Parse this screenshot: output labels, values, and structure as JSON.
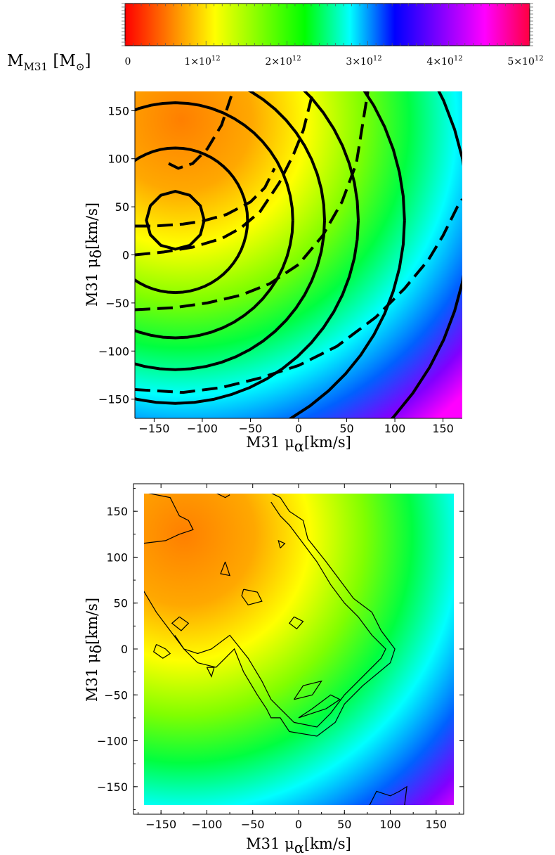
{
  "colorbar": {
    "label_main": "M",
    "label_sub": "M31",
    "label_unit_open": " [M",
    "label_unit_sub": "⊙",
    "label_unit_close": "]",
    "range": [
      0,
      5000000000000.0
    ],
    "ticks": [
      {
        "value": 0,
        "mant": "0",
        "exp": ""
      },
      {
        "value": 1000000000000.0,
        "mant": "1×10",
        "exp": "12"
      },
      {
        "value": 2000000000000.0,
        "mant": "2×10",
        "exp": "12"
      },
      {
        "value": 3000000000000.0,
        "mant": "3×10",
        "exp": "12"
      },
      {
        "value": 4000000000000.0,
        "mant": "4×10",
        "exp": "12"
      },
      {
        "value": 5000000000000.0,
        "mant": "5×10",
        "exp": "12"
      }
    ],
    "colors": [
      "#ff0000",
      "#ff8000",
      "#ffff00",
      "#80ff00",
      "#00ff00",
      "#00ffff",
      "#0000ff",
      "#8000ff",
      "#ff00ff",
      "#ff0040"
    ]
  },
  "chart_data": [
    {
      "type": "heatmap",
      "xlabel_main": "M31 μ",
      "xlabel_sub": "α",
      "xlabel_unit": "[km/s]",
      "ylabel_main": "M31 μ",
      "ylabel_sub": "δ",
      "ylabel_unit": "[km/s]",
      "xlim": [
        -170,
        170
      ],
      "ylim": [
        -170,
        170
      ],
      "xticks": [
        -150,
        -100,
        -50,
        0,
        50,
        100,
        150
      ],
      "yticks": [
        -150,
        -100,
        -50,
        0,
        50,
        100,
        150
      ],
      "field": {
        "description_center": [
          -130,
          115
        ],
        "min_value": 900000000000.0,
        "max_value": 5000000000000.0
      },
      "solid_contour_radii": [
        30,
        75,
        122,
        155,
        190,
        238,
        305
      ],
      "solid_contour_center": [
        -128,
        36
      ],
      "dashed_contours": [
        {
          "points": [
            [
              -135,
              95
            ],
            [
              -125,
              90
            ],
            [
              -110,
              95
            ],
            [
              -95,
              110
            ],
            [
              -80,
              135
            ],
            [
              -70,
              165
            ]
          ]
        },
        {
          "points": [
            [
              -170,
              0
            ],
            [
              -140,
              3
            ],
            [
              -110,
              8
            ],
            [
              -80,
              17
            ],
            [
              -60,
              28
            ],
            [
              -40,
              45
            ],
            [
              -20,
              75
            ],
            [
              -5,
              105
            ],
            [
              5,
              130
            ],
            [
              15,
              170
            ]
          ]
        },
        {
          "points": [
            [
              -170,
              -57
            ],
            [
              -130,
              -55
            ],
            [
              -95,
              -50
            ],
            [
              -60,
              -42
            ],
            [
              -30,
              -30
            ],
            [
              0,
              -10
            ],
            [
              25,
              20
            ],
            [
              45,
              55
            ],
            [
              60,
              95
            ],
            [
              72,
              170
            ]
          ]
        },
        {
          "points": [
            [
              -170,
              -140
            ],
            [
              -120,
              -143
            ],
            [
              -80,
              -138
            ],
            [
              -40,
              -128
            ],
            [
              0,
              -115
            ],
            [
              40,
              -95
            ],
            [
              80,
              -65
            ],
            [
              110,
              -35
            ],
            [
              135,
              -5
            ],
            [
              150,
              20
            ],
            [
              165,
              50
            ],
            [
              170,
              58
            ]
          ]
        },
        {
          "points": [
            [
              -170,
              30
            ],
            [
              -150,
              30
            ],
            [
              -120,
              32
            ],
            [
              -100,
              35
            ],
            [
              -75,
              42
            ],
            [
              -50,
              55
            ],
            [
              -35,
              70
            ],
            [
              -25,
              90
            ]
          ]
        }
      ]
    },
    {
      "type": "heatmap",
      "xlabel_main": "M31 μ",
      "xlabel_sub": "α",
      "xlabel_unit": "[km/s]",
      "ylabel_main": "M31 μ",
      "ylabel_sub": "δ",
      "ylabel_unit": "[km/s]",
      "xlim": [
        -180,
        180
      ],
      "ylim": [
        -180,
        180
      ],
      "xticks": [
        -150,
        -100,
        -50,
        0,
        50,
        100,
        150
      ],
      "yticks": [
        -150,
        -100,
        -50,
        0,
        50,
        100,
        150
      ],
      "field_extent": [
        -170,
        170
      ],
      "contours_outer": [
        [
          -170,
          65
        ],
        [
          -155,
          40
        ],
        [
          -140,
          20
        ],
        [
          -125,
          0
        ],
        [
          -110,
          -15
        ],
        [
          -90,
          -20
        ],
        [
          -80,
          -10
        ],
        [
          -70,
          0
        ],
        [
          -60,
          -25
        ],
        [
          -45,
          -50
        ],
        [
          -35,
          -65
        ],
        [
          -30,
          -75
        ],
        [
          -20,
          -75
        ],
        [
          -10,
          -90
        ],
        [
          20,
          -95
        ],
        [
          40,
          -80
        ],
        [
          50,
          -60
        ],
        [
          70,
          -40
        ],
        [
          100,
          -15
        ],
        [
          105,
          0
        ],
        [
          90,
          20
        ],
        [
          80,
          40
        ],
        [
          60,
          55
        ],
        [
          45,
          75
        ],
        [
          30,
          95
        ],
        [
          10,
          120
        ],
        [
          5,
          140
        ],
        [
          -10,
          150
        ],
        [
          -20,
          165
        ],
        [
          -30,
          170
        ]
      ],
      "contours_inner": [
        [
          -135,
          15
        ],
        [
          -125,
          0
        ],
        [
          -110,
          -5
        ],
        [
          -95,
          0
        ],
        [
          -75,
          15
        ],
        [
          -55,
          -10
        ],
        [
          -40,
          -35
        ],
        [
          -30,
          -55
        ],
        [
          -20,
          -65
        ],
        [
          -5,
          -80
        ],
        [
          20,
          -85
        ],
        [
          35,
          -70
        ],
        [
          50,
          -50
        ],
        [
          70,
          -30
        ],
        [
          90,
          -10
        ],
        [
          95,
          0
        ],
        [
          80,
          15
        ],
        [
          65,
          35
        ],
        [
          50,
          50
        ],
        [
          35,
          70
        ],
        [
          20,
          95
        ],
        [
          5,
          115
        ],
        [
          -10,
          135
        ],
        [
          -20,
          145
        ],
        [
          -30,
          160
        ]
      ],
      "contours_small": [
        [
          [
            -155,
            5
          ],
          [
            -145,
            0
          ],
          [
            -140,
            -5
          ],
          [
            -148,
            -10
          ],
          [
            -158,
            -3
          ],
          [
            -155,
            5
          ]
        ],
        [
          [
            -130,
            35
          ],
          [
            -120,
            28
          ],
          [
            -128,
            20
          ],
          [
            -138,
            28
          ],
          [
            -130,
            35
          ]
        ],
        [
          [
            -60,
            65
          ],
          [
            -45,
            62
          ],
          [
            -40,
            52
          ],
          [
            -55,
            48
          ],
          [
            -62,
            58
          ],
          [
            -60,
            65
          ]
        ],
        [
          [
            -5,
            35
          ],
          [
            5,
            30
          ],
          [
            -2,
            22
          ],
          [
            -10,
            28
          ],
          [
            -5,
            35
          ]
        ],
        [
          [
            -80,
            95
          ],
          [
            -75,
            80
          ],
          [
            -85,
            82
          ],
          [
            -80,
            95
          ]
        ],
        [
          [
            -100,
            -20
          ],
          [
            -95,
            -30
          ],
          [
            -92,
            -20
          ],
          [
            -100,
            -20
          ]
        ],
        [
          [
            -5,
            -55
          ],
          [
            15,
            -50
          ],
          [
            25,
            -35
          ],
          [
            5,
            -40
          ],
          [
            -5,
            -55
          ]
        ],
        [
          [
            0,
            -75
          ],
          [
            30,
            -65
          ],
          [
            45,
            -55
          ],
          [
            35,
            -50
          ],
          [
            15,
            -65
          ],
          [
            0,
            -75
          ]
        ],
        [
          [
            -20,
            110
          ],
          [
            -15,
            115
          ],
          [
            -22,
            118
          ],
          [
            -20,
            110
          ]
        ],
        [
          [
            75,
            -175
          ],
          [
            85,
            -155
          ],
          [
            100,
            -160
          ],
          [
            110,
            -155
          ],
          [
            118,
            -150
          ],
          [
            115,
            -175
          ]
        ]
      ],
      "contours_top": [
        [
          -90,
          170
        ],
        [
          -80,
          165
        ],
        [
          -75,
          168
        ]
      ],
      "contours_left_top": [
        [
          -165,
          170
        ],
        [
          -140,
          165
        ],
        [
          -130,
          145
        ],
        [
          -120,
          140
        ],
        [
          -115,
          130
        ],
        [
          -130,
          125
        ],
        [
          -145,
          118
        ],
        [
          -170,
          115
        ]
      ]
    }
  ]
}
